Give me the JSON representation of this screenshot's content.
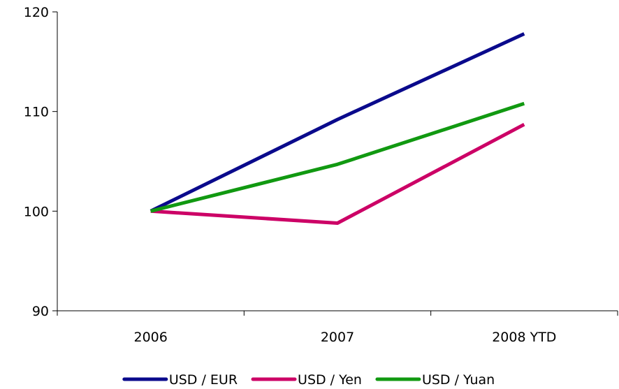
{
  "chart_data": {
    "type": "line",
    "categories": [
      "2006",
      "2007",
      "2008 YTD"
    ],
    "series": [
      {
        "name": "USD / EUR",
        "values": [
          100,
          109.2,
          117.8
        ],
        "color": "#0a0a8c"
      },
      {
        "name": "USD / Yen",
        "values": [
          100,
          98.8,
          108.7
        ],
        "color": "#cc0066"
      },
      {
        "name": "USD / Yuan",
        "values": [
          100,
          104.7,
          110.8
        ],
        "color": "#119911"
      }
    ],
    "ylim": [
      90,
      120
    ],
    "yticks": [
      "90",
      "100",
      "110",
      "120"
    ],
    "grid": false,
    "legend": "bottom"
  }
}
